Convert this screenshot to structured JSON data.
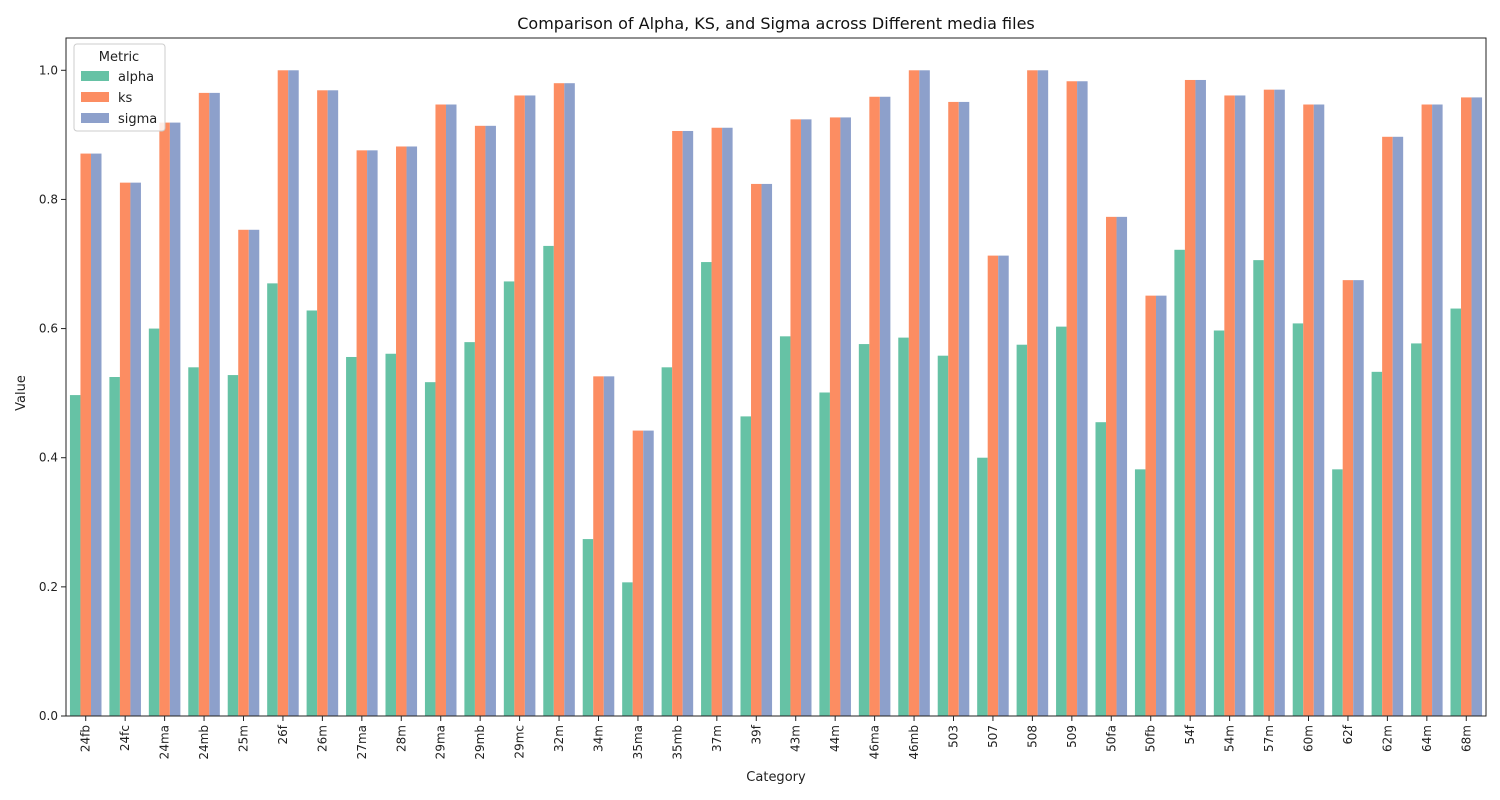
{
  "chart_data": {
    "type": "bar",
    "title": "Comparison of Alpha, KS, and Sigma across Different media files",
    "xlabel": "Category",
    "ylabel": "Value",
    "ylim": [
      0,
      1.05
    ],
    "yticks": [
      "0.0",
      "0.2",
      "0.4",
      "0.6",
      "0.8",
      "1.0"
    ],
    "grid": false,
    "legend": {
      "title": "Metric",
      "placement": "top-left"
    },
    "categories": [
      "24fb",
      "24fc",
      "24ma",
      "24mb",
      "25m",
      "26f",
      "26m",
      "27ma",
      "28m",
      "29ma",
      "29mb",
      "29mc",
      "32m",
      "34m",
      "35ma",
      "35mb",
      "37m",
      "39f",
      "43m",
      "44m",
      "46ma",
      "46mb",
      "503",
      "507",
      "508",
      "509",
      "50fa",
      "50fb",
      "54f",
      "54m",
      "57m",
      "60m",
      "62f",
      "62m",
      "64m",
      "68m"
    ],
    "series": [
      {
        "name": "alpha",
        "color": "#66c2a5",
        "values": [
          0.497,
          0.525,
          0.6,
          0.54,
          0.528,
          0.67,
          0.628,
          0.556,
          0.561,
          0.517,
          0.579,
          0.673,
          0.728,
          0.274,
          0.207,
          0.54,
          0.703,
          0.464,
          0.588,
          0.501,
          0.576,
          0.586,
          0.558,
          0.4,
          0.575,
          0.603,
          0.455,
          0.382,
          0.722,
          0.597,
          0.706,
          0.608,
          0.382,
          0.533,
          0.577,
          0.631
        ]
      },
      {
        "name": "ks",
        "color": "#fc8d62",
        "values": [
          0.871,
          0.826,
          0.919,
          0.965,
          0.753,
          1.0,
          0.969,
          0.876,
          0.882,
          0.947,
          0.914,
          0.961,
          0.98,
          0.526,
          0.442,
          0.906,
          0.911,
          0.824,
          0.924,
          0.927,
          0.959,
          1.0,
          0.951,
          0.713,
          1.0,
          0.983,
          0.773,
          0.651,
          0.985,
          0.961,
          0.97,
          0.947,
          0.675,
          0.897,
          0.947,
          0.958
        ]
      },
      {
        "name": "sigma",
        "color": "#8da0cb",
        "values": [
          0.871,
          0.826,
          0.919,
          0.965,
          0.753,
          1.0,
          0.969,
          0.876,
          0.882,
          0.947,
          0.914,
          0.961,
          0.98,
          0.526,
          0.442,
          0.906,
          0.911,
          0.824,
          0.924,
          0.927,
          0.959,
          1.0,
          0.951,
          0.713,
          1.0,
          0.983,
          0.773,
          0.651,
          0.985,
          0.961,
          0.97,
          0.947,
          0.675,
          0.897,
          0.947,
          0.958
        ]
      }
    ]
  }
}
